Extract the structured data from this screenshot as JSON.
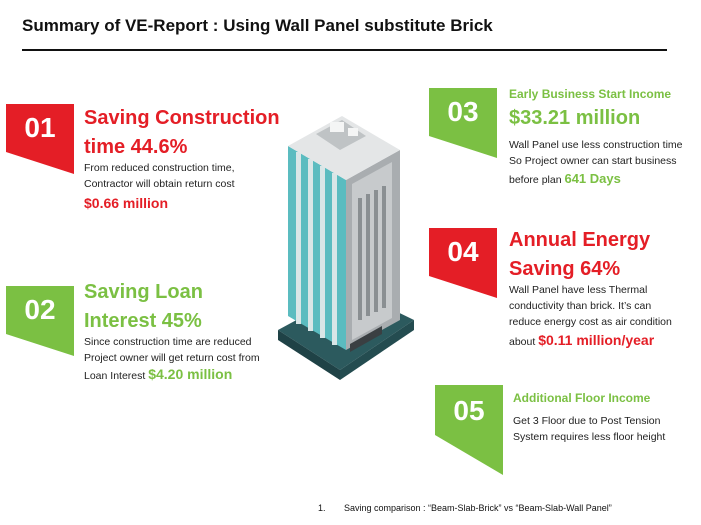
{
  "title": "Summary of VE-Report : Using Wall Panel substitute Brick",
  "colors": {
    "red": "#e41e26",
    "green": "#7bc043",
    "building_teal": "#5bbcc0",
    "building_dark": "#2c5a5e"
  },
  "items": [
    {
      "number": "01",
      "heading_line1": "Saving Construction",
      "heading_line2": "time 44.6%",
      "text_line1": "From reduced construction time,",
      "text_line2": "Contractor will obtain return cost",
      "highlight": "$0.66 million"
    },
    {
      "number": "02",
      "heading_line1": "Saving Loan",
      "heading_line2": "Interest 45%",
      "text_line1": "Since construction time are reduced",
      "text_line2": "Project owner will get return cost from",
      "text_line3": "Loan Interest",
      "highlight": "$4.20 million"
    },
    {
      "number": "03",
      "heading_small": "Early Business Start Income",
      "heading_big": "$33.21 million",
      "text_line1": "Wall Panel use less construction time",
      "text_line2": "So Project owner can start business",
      "text_line3": "before plan",
      "highlight": "641 Days"
    },
    {
      "number": "04",
      "heading_line1": "Annual Energy",
      "heading_line2": "Saving 64%",
      "text_line1": "Wall Panel have less Thermal",
      "text_line2": "conductivity than brick. It’s can",
      "text_line3": "reduce energy cost as air condition",
      "text_line4": "about",
      "highlight": "$0.11 million/year"
    },
    {
      "number": "05",
      "heading_small": "Additional Floor Income",
      "text_line1": "Get 3 Floor due to Post Tension",
      "text_line2": "System requires less floor height"
    }
  ],
  "footnote": {
    "number": "1.",
    "text": "Saving comparison : “Beam-Slab-Brick” vs “Beam-Slab-Wall Panel”"
  }
}
